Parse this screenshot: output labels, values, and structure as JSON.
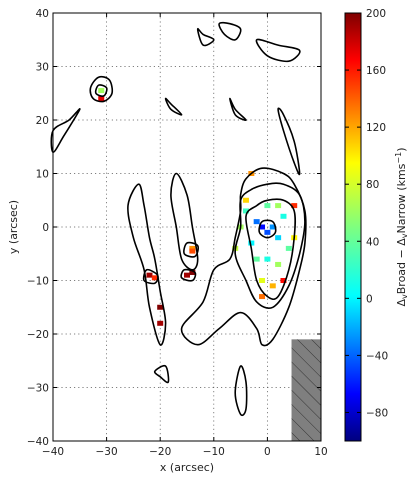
{
  "chart_data": {
    "type": "heatmap",
    "x": {
      "label": "x (arcsec)",
      "range": [
        -40,
        10
      ],
      "ticks": [
        -40,
        -30,
        -20,
        -10,
        0,
        10
      ]
    },
    "y": {
      "label": "y (arcsec)",
      "range": [
        -40,
        40
      ],
      "ticks": [
        -40,
        -30,
        -20,
        -10,
        0,
        10,
        20,
        30,
        40
      ]
    },
    "grid": true,
    "colorbar": {
      "label": "ΔvBroad − ΔvNarrow (kms⁻¹)",
      "label_parts": {
        "main": "Δ",
        "sub1": "v",
        "mid": "Broad − Δ",
        "sub2": "v",
        "end": "Narrow (kms",
        "sup": "−1",
        "close": ")"
      },
      "range": [
        -100,
        200
      ],
      "ticks": [
        -80,
        -40,
        0,
        40,
        80,
        120,
        160,
        200
      ],
      "colormap": "jet"
    },
    "masked_region": {
      "x": [
        4.5,
        10
      ],
      "y": [
        -40,
        -21
      ],
      "style": "hatched"
    },
    "contours": [
      {
        "name": "main-outer",
        "points": [
          [
            -5,
            3
          ],
          [
            -6,
            -2
          ],
          [
            -7,
            -6
          ],
          [
            -10,
            -8
          ],
          [
            -12,
            -14
          ],
          [
            -16,
            -19
          ],
          [
            -13,
            -22
          ],
          [
            -9,
            -19
          ],
          [
            -5,
            -16
          ],
          [
            -2,
            -19
          ],
          [
            -1,
            -22
          ],
          [
            1,
            -21
          ],
          [
            4,
            -15
          ],
          [
            6,
            -8
          ],
          [
            7,
            -3
          ],
          [
            7,
            3
          ],
          [
            5,
            8
          ],
          [
            3,
            10
          ],
          [
            -1,
            11
          ],
          [
            -4,
            9
          ],
          [
            -5,
            6
          ]
        ]
      },
      {
        "name": "main-mid",
        "points": [
          [
            -5,
            5
          ],
          [
            -5,
            0
          ],
          [
            -6,
            -5
          ],
          [
            -4,
            -10
          ],
          [
            -2,
            -14
          ],
          [
            1,
            -15
          ],
          [
            4,
            -11
          ],
          [
            6,
            -5
          ],
          [
            7,
            1
          ],
          [
            6,
            6
          ],
          [
            3,
            8
          ],
          [
            0,
            8
          ],
          [
            -3,
            7
          ]
        ]
      },
      {
        "name": "main-inner",
        "points": [
          [
            -4,
            2
          ],
          [
            -3,
            -4
          ],
          [
            -2,
            -10
          ],
          [
            0,
            -13
          ],
          [
            2,
            -13
          ],
          [
            4,
            -8
          ],
          [
            5,
            -2
          ],
          [
            5,
            3
          ],
          [
            3,
            5
          ],
          [
            0,
            5
          ],
          [
            -2,
            4
          ]
        ]
      },
      {
        "name": "core",
        "points": [
          [
            -1,
            1
          ],
          [
            -1.5,
            -1
          ],
          [
            0,
            -2
          ],
          [
            1.5,
            -1
          ],
          [
            1,
            1
          ]
        ]
      },
      {
        "name": "north-blob",
        "points": [
          [
            -31.5,
            28
          ],
          [
            -33,
            26
          ],
          [
            -32.5,
            24
          ],
          [
            -30.5,
            23.5
          ],
          [
            -29,
            25
          ],
          [
            -29.5,
            27.5
          ]
        ]
      },
      {
        "name": "north-inner",
        "points": [
          [
            -31.5,
            26.5
          ],
          [
            -32,
            25
          ],
          [
            -30.5,
            24.5
          ],
          [
            -30,
            26
          ]
        ]
      },
      {
        "name": "left-ridge",
        "points": [
          [
            -40,
            18
          ],
          [
            -37,
            20
          ],
          [
            -35,
            22
          ],
          [
            -38,
            17
          ],
          [
            -40,
            14
          ]
        ]
      },
      {
        "name": "mid-arc-a",
        "points": [
          [
            -24,
            8
          ],
          [
            -23,
            4
          ],
          [
            -22,
            -2
          ],
          [
            -21,
            -6
          ],
          [
            -20,
            -12
          ],
          [
            -19,
            -18
          ],
          [
            -20,
            -22
          ],
          [
            -22,
            -15
          ],
          [
            -23,
            -8
          ],
          [
            -25,
            -2
          ],
          [
            -26,
            4
          ]
        ]
      },
      {
        "name": "mid-arc-b",
        "points": [
          [
            -17,
            10
          ],
          [
            -15,
            6
          ],
          [
            -14,
            0
          ],
          [
            -13,
            -6
          ],
          [
            -14,
            -8
          ],
          [
            -16,
            -6
          ],
          [
            -17,
            0
          ],
          [
            -18,
            6
          ]
        ]
      },
      {
        "name": "source-a",
        "points": [
          [
            -22.5,
            -8
          ],
          [
            -23,
            -10
          ],
          [
            -21,
            -10.5
          ],
          [
            -20.5,
            -9
          ]
        ]
      },
      {
        "name": "source-b",
        "points": [
          [
            -15.5,
            -8
          ],
          [
            -16,
            -9.5
          ],
          [
            -14,
            -10
          ],
          [
            -13.5,
            -8.5
          ]
        ]
      },
      {
        "name": "source-c",
        "points": [
          [
            -15,
            -3
          ],
          [
            -15.5,
            -5
          ],
          [
            -13.5,
            -5.5
          ],
          [
            -13,
            -3.5
          ]
        ]
      },
      {
        "name": "top-blob-a",
        "points": [
          [
            -13,
            37
          ],
          [
            -12,
            36
          ],
          [
            -10,
            35
          ],
          [
            -12,
            34
          ]
        ]
      },
      {
        "name": "top-blob-b",
        "points": [
          [
            -9,
            38
          ],
          [
            -8,
            36
          ],
          [
            -6,
            35
          ],
          [
            -5,
            37
          ],
          [
            -7,
            38
          ]
        ]
      },
      {
        "name": "top-blob-c",
        "points": [
          [
            -2,
            35
          ],
          [
            2,
            34
          ],
          [
            6,
            33
          ],
          [
            4,
            31
          ],
          [
            0,
            32
          ]
        ]
      },
      {
        "name": "right-streak",
        "points": [
          [
            2,
            22
          ],
          [
            3,
            18
          ],
          [
            5,
            12
          ],
          [
            6,
            10
          ],
          [
            5,
            16
          ],
          [
            3,
            21
          ]
        ]
      },
      {
        "name": "lower-drop",
        "points": [
          [
            -5,
            -26
          ],
          [
            -4,
            -29
          ],
          [
            -4,
            -34
          ],
          [
            -5,
            -35
          ],
          [
            -6,
            -31
          ]
        ]
      },
      {
        "name": "lower-left-a",
        "points": [
          [
            -21,
            -27
          ],
          [
            -20,
            -28
          ],
          [
            -18.5,
            -29
          ],
          [
            -19,
            -26
          ]
        ]
      },
      {
        "name": "mid-blob",
        "points": [
          [
            -19,
            24
          ],
          [
            -18,
            23
          ],
          [
            -16,
            21
          ],
          [
            -18,
            22
          ]
        ]
      },
      {
        "name": "center-right-blob",
        "points": [
          [
            -7,
            24
          ],
          [
            -6,
            22
          ],
          [
            -4,
            20
          ],
          [
            -6,
            21
          ]
        ]
      }
    ],
    "velocity_points": [
      {
        "x": -1,
        "y": 0,
        "v": -60
      },
      {
        "x": 0,
        "y": -1,
        "v": -40
      },
      {
        "x": 1,
        "y": 0,
        "v": -20
      },
      {
        "x": -2,
        "y": 1,
        "v": -30
      },
      {
        "x": 2,
        "y": -2,
        "v": 0
      },
      {
        "x": -3,
        "y": -3,
        "v": 10
      },
      {
        "x": -4,
        "y": 3,
        "v": 30
      },
      {
        "x": 3,
        "y": 2,
        "v": 20
      },
      {
        "x": 4,
        "y": -4,
        "v": 40
      },
      {
        "x": -2,
        "y": -6,
        "v": 40
      },
      {
        "x": 0,
        "y": -6,
        "v": 20
      },
      {
        "x": 2,
        "y": -7,
        "v": 60
      },
      {
        "x": -1,
        "y": -10,
        "v": 80
      },
      {
        "x": 1,
        "y": -11,
        "v": 110
      },
      {
        "x": 3,
        "y": -10,
        "v": 160
      },
      {
        "x": 5,
        "y": 4,
        "v": 150
      },
      {
        "x": -4,
        "y": 5,
        "v": 100
      },
      {
        "x": -5,
        "y": 0,
        "v": 60
      },
      {
        "x": -6,
        "y": -4,
        "v": 70
      },
      {
        "x": 0,
        "y": 4,
        "v": 40
      },
      {
        "x": 2,
        "y": 4,
        "v": 60
      },
      {
        "x": -3,
        "y": 10,
        "v": 120
      },
      {
        "x": 5,
        "y": -2,
        "v": 90
      },
      {
        "x": -1,
        "y": -13,
        "v": 130
      },
      {
        "x": -31,
        "y": 25.5,
        "v": 60
      },
      {
        "x": -31,
        "y": 24,
        "v": 170
      },
      {
        "x": -22,
        "y": -9,
        "v": 190
      },
      {
        "x": -21,
        "y": -9.5,
        "v": 150
      },
      {
        "x": -15,
        "y": -9,
        "v": 190
      },
      {
        "x": -14,
        "y": -8.5,
        "v": 200
      },
      {
        "x": -14,
        "y": -4,
        "v": 120
      },
      {
        "x": -14,
        "y": -4.5,
        "v": 140
      },
      {
        "x": -20,
        "y": -15,
        "v": 200
      },
      {
        "x": -20,
        "y": -18,
        "v": 190
      }
    ]
  }
}
